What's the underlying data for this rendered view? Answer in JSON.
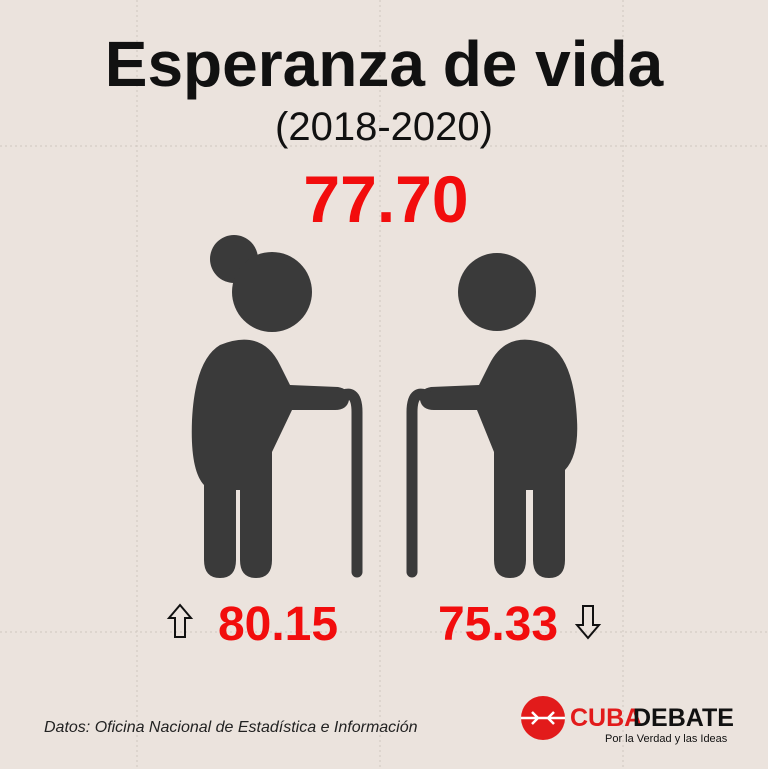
{
  "header": {
    "title": "Esperanza de vida",
    "subtitle": "(2018-2020)"
  },
  "total": "77.70",
  "female": {
    "value": "80.15"
  },
  "male": {
    "value": "75.33"
  },
  "source": "Datos: Oficina Nacional de Estadística e Información",
  "logo": {
    "name_part1": "CUBA",
    "name_part2": "DEBATE",
    "tagline": "Por la Verdad y las Ideas"
  }
}
